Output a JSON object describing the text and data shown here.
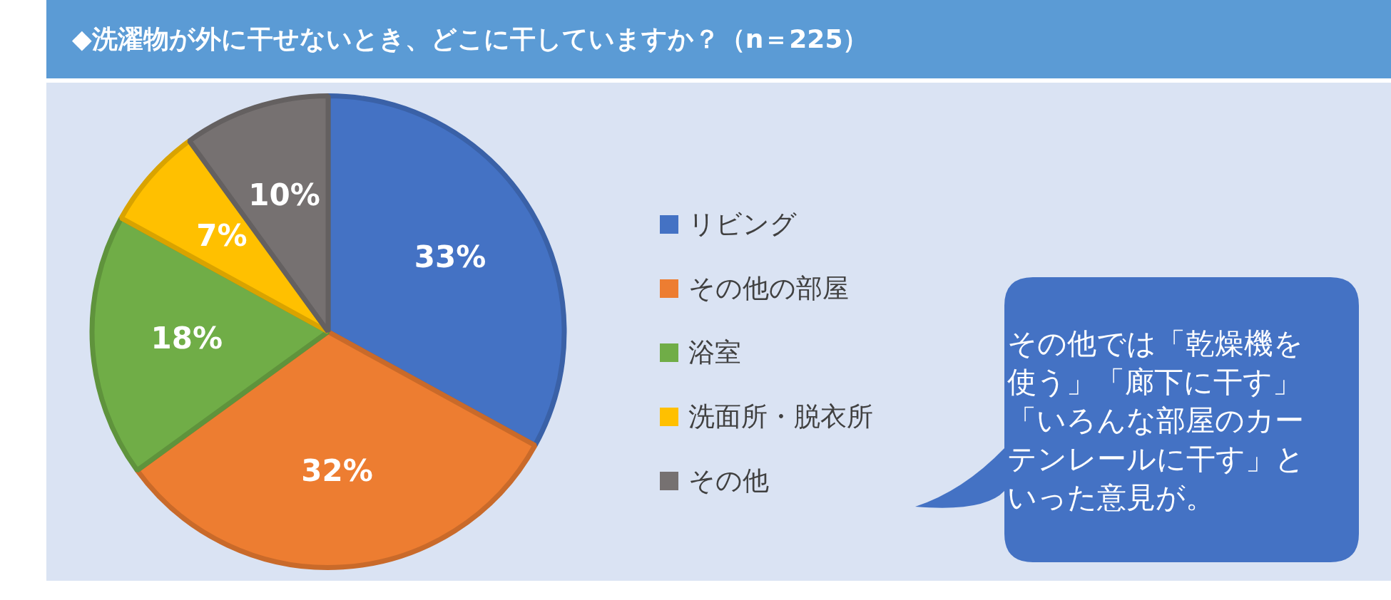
{
  "chart_data": {
    "type": "pie",
    "title": "◆洗濯物が外に干せないとき、どこに干していますか？（n＝225）",
    "categories": [
      "リビング",
      "その他の部屋",
      "浴室",
      "洗面所・脱衣所",
      "その他"
    ],
    "values": [
      33,
      32,
      18,
      7,
      10
    ],
    "colors": [
      "#4472c4",
      "#ed7d31",
      "#70ad47",
      "#ffc000",
      "#767171"
    ],
    "value_labels": [
      "33%",
      "32%",
      "18%",
      "7%",
      "10%"
    ],
    "legend": "right",
    "annotations": [
      "その他では「乾燥機を使う」「廊下に干す」「いろんな部屋のカーテンレールに干す」といった意見が。"
    ]
  }
}
